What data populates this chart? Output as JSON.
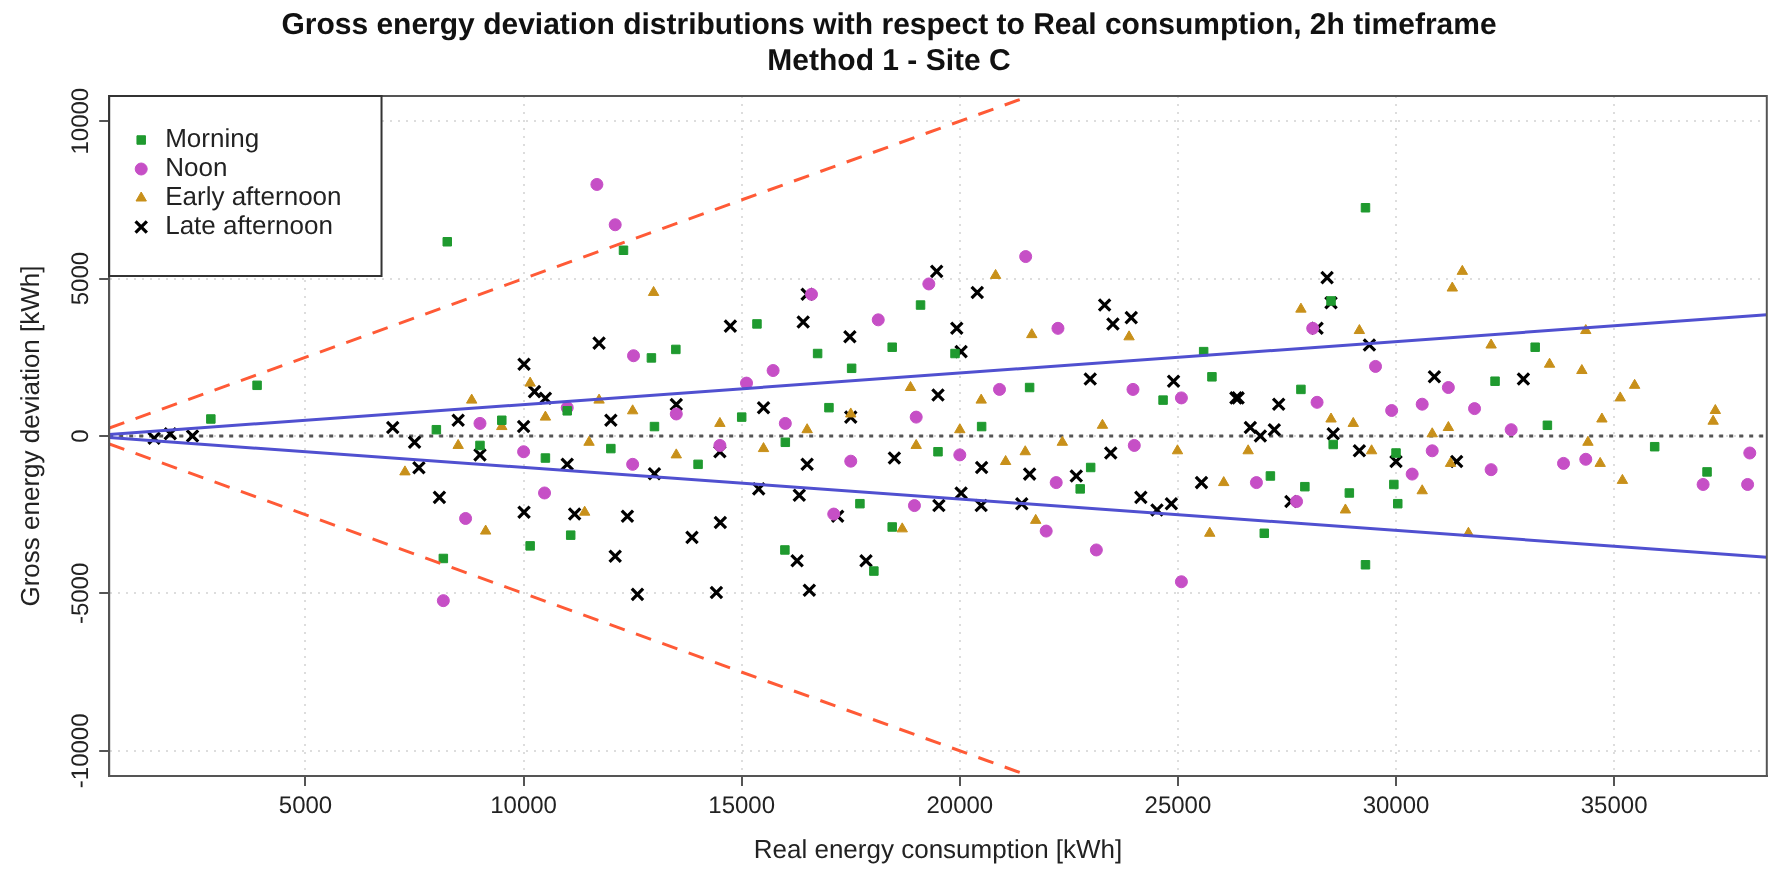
{
  "chart_data": {
    "type": "scatter",
    "title": "Gross energy deviation distributions with respect to Real consumption, 2h timeframe",
    "subtitle": "Method 1 - Site C",
    "xlabel": "Real energy consumption [kWh]",
    "ylabel": "Gross energy deviation [kWh]",
    "xlim": [
      500,
      38500
    ],
    "xticks": [
      5000,
      10000,
      15000,
      20000,
      25000,
      30000,
      35000
    ],
    "ylim": [
      -10800,
      10800
    ],
    "yticks": [
      -10000,
      -5000,
      0,
      5000,
      10000
    ],
    "grid": true,
    "legend": "top left",
    "ref_lines": [
      {
        "axis": "y",
        "value": 0,
        "color": "#555555",
        "line_style": "dotted"
      }
    ],
    "series": [
      {
        "name": "Morning",
        "color": "#1f9a2f",
        "marker": "square",
        "x": [
          3890,
          2830,
          8250,
          12290,
          12930,
          13490,
          8160,
          10150,
          11080,
          19100,
          15350,
          16740,
          18450,
          15990,
          18030,
          18450,
          25590,
          25780,
          19890,
          21600,
          24660,
          22760,
          17710,
          17520,
          29300,
          28510,
          33190,
          32270,
          27820,
          33470,
          35930,
          37130,
          29300,
          30040,
          29950,
          28930,
          27910,
          27120,
          26980,
          30000,
          28560,
          8000,
          9000,
          9500,
          10500,
          11000,
          12000,
          13000,
          14000,
          15000,
          16000,
          17000,
          19500,
          20500,
          23000
        ],
        "values": [
          1610,
          540,
          6170,
          5900,
          2480,
          2750,
          -3890,
          -3490,
          -3150,
          4160,
          3560,
          2620,
          2820,
          -3620,
          -4290,
          -2890,
          2680,
          1880,
          2620,
          1540,
          1140,
          -1680,
          -2150,
          2150,
          7250,
          4290,
          2820,
          1740,
          1480,
          340,
          -340,
          -1140,
          -4090,
          -2150,
          -1540,
          -1810,
          -1610,
          -1270,
          -3090,
          -540,
          -270,
          200,
          -300,
          500,
          -700,
          800,
          -400,
          300,
          -900,
          600,
          -200,
          900,
          -500,
          300,
          -1000
        ]
      },
      {
        "name": "Noon",
        "color": "#c64fc6",
        "marker": "circle",
        "x": [
          11680,
          12100,
          12520,
          8670,
          8160,
          10480,
          21510,
          19290,
          16600,
          18130,
          22250,
          23130,
          25080,
          21980,
          17110,
          23970,
          25080,
          20910,
          15110,
          15720,
          18960,
          22210,
          28090,
          29530,
          31200,
          31800,
          30600,
          29900,
          32640,
          33840,
          34350,
          37040,
          38060,
          38110,
          30370,
          32180,
          27720,
          26800,
          28190,
          30830,
          9000,
          10000,
          11000,
          12500,
          13500,
          14500,
          16000,
          17500,
          19000,
          20000,
          24000
        ],
        "values": [
          7990,
          6710,
          2550,
          -2620,
          -5230,
          -1810,
          5700,
          4830,
          4500,
          3690,
          3420,
          -3620,
          -4630,
          -3020,
          -2480,
          1480,
          1210,
          1480,
          1680,
          2080,
          -2210,
          -1480,
          3420,
          2210,
          1540,
          870,
          1010,
          810,
          200,
          -870,
          -740,
          -1540,
          -1540,
          -540,
          -1210,
          -1070,
          -2080,
          -1480,
          1070,
          -470,
          400,
          -500,
          900,
          -900,
          700,
          -300,
          400,
          -800,
          600,
          -600,
          -300
        ]
      },
      {
        "name": "Early afternoon",
        "color": "#c8901a",
        "marker": "triangle",
        "x": [
          12980,
          10150,
          11730,
          7280,
          9130,
          11400,
          8810,
          20820,
          21650,
          23880,
          18680,
          21740,
          25730,
          26050,
          24990,
          20490,
          22350,
          21050,
          18870,
          23270,
          31520,
          31290,
          27820,
          29160,
          34350,
          32180,
          33520,
          34260,
          35470,
          35140,
          37320,
          37270,
          34720,
          28510,
          29020,
          29440,
          30830,
          31200,
          31250,
          30600,
          28840,
          31660,
          34680,
          35190,
          34400,
          26610,
          8500,
          9500,
          10500,
          11500,
          12500,
          13500,
          14500,
          15500,
          16500,
          17500,
          19000,
          20000,
          21500
        ],
        "values": [
          4560,
          1680,
          1140,
          -1140,
          -3020,
          -2420,
          1140,
          5100,
          3220,
          3150,
          -2950,
          -2680,
          -3090,
          -1480,
          -470,
          1140,
          -200,
          -810,
          1540,
          340,
          5230,
          4700,
          4030,
          3350,
          3350,
          2890,
          2280,
          2080,
          1610,
          1210,
          810,
          470,
          540,
          540,
          400,
          -470,
          70,
          270,
          -870,
          -1740,
          -2350,
          -3090,
          -870,
          -1410,
          -200,
          -470,
          -300,
          300,
          600,
          -200,
          800,
          -600,
          400,
          -400,
          200,
          700,
          -300,
          200,
          -500
        ]
      },
      {
        "name": "Late afternoon",
        "color": "#000000",
        "marker": "cross",
        "x": [
          1530,
          2410,
          1900,
          7000,
          11730,
          10010,
          10250,
          8070,
          12100,
          12610,
          13860,
          10010,
          7600,
          11170,
          12380,
          19470,
          20400,
          16500,
          14740,
          16410,
          17480,
          19930,
          20030,
          23320,
          23510,
          23930,
          22990,
          24900,
          26330,
          14420,
          16550,
          16270,
          17850,
          17200,
          14510,
          21420,
          20490,
          19520,
          24520,
          24850,
          25540,
          24150,
          23460,
          21600,
          22670,
          20030,
          16320,
          15390,
          28420,
          28510,
          28190,
          29390,
          30880,
          32920,
          26380,
          27310,
          26660,
          26890,
          27210,
          28560,
          29160,
          30000,
          31390,
          27590,
          7500,
          8500,
          9000,
          10000,
          10500,
          11000,
          12000,
          13000,
          13500,
          14500,
          15500,
          16500,
          17500,
          18500,
          19500,
          20500
        ],
        "values": [
          -70,
          0,
          70,
          270,
          2950,
          2280,
          1410,
          -1950,
          -3820,
          -5030,
          -3220,
          -2420,
          -1010,
          -2480,
          -2550,
          5230,
          4560,
          4500,
          3490,
          3620,
          3150,
          3420,
          2680,
          4160,
          3560,
          3760,
          1810,
          1740,
          1210,
          -4970,
          -4900,
          -3960,
          -3960,
          -2550,
          -2750,
          -2150,
          -2210,
          -2210,
          -2350,
          -2150,
          -1480,
          -1950,
          -540,
          -1210,
          -1270,
          -1810,
          -1880,
          -1680,
          5030,
          4230,
          3420,
          2890,
          1880,
          1810,
          1210,
          1010,
          270,
          0,
          200,
          70,
          -470,
          -810,
          -810,
          -2080,
          -200,
          500,
          -600,
          300,
          1200,
          -900,
          500,
          -1200,
          1000,
          -500,
          900,
          -900,
          600,
          -700,
          1300,
          -1000
        ]
      },
      {
        "type": "line",
        "color": "#ff5a36",
        "line_style": "dashed",
        "x": [
          500,
          21600
        ],
        "values": [
          250,
          10800
        ]
      },
      {
        "type": "line",
        "color": "#ff5a36",
        "line_style": "dashed",
        "x": [
          500,
          21600
        ],
        "values": [
          -250,
          -10800
        ]
      },
      {
        "type": "line",
        "color": "#5050d0",
        "line_style": "solid",
        "x": [
          500,
          38500
        ],
        "values": [
          50,
          3850
        ]
      },
      {
        "type": "line",
        "color": "#5050d0",
        "line_style": "solid",
        "x": [
          500,
          38500
        ],
        "values": [
          -50,
          -3850
        ]
      }
    ]
  }
}
